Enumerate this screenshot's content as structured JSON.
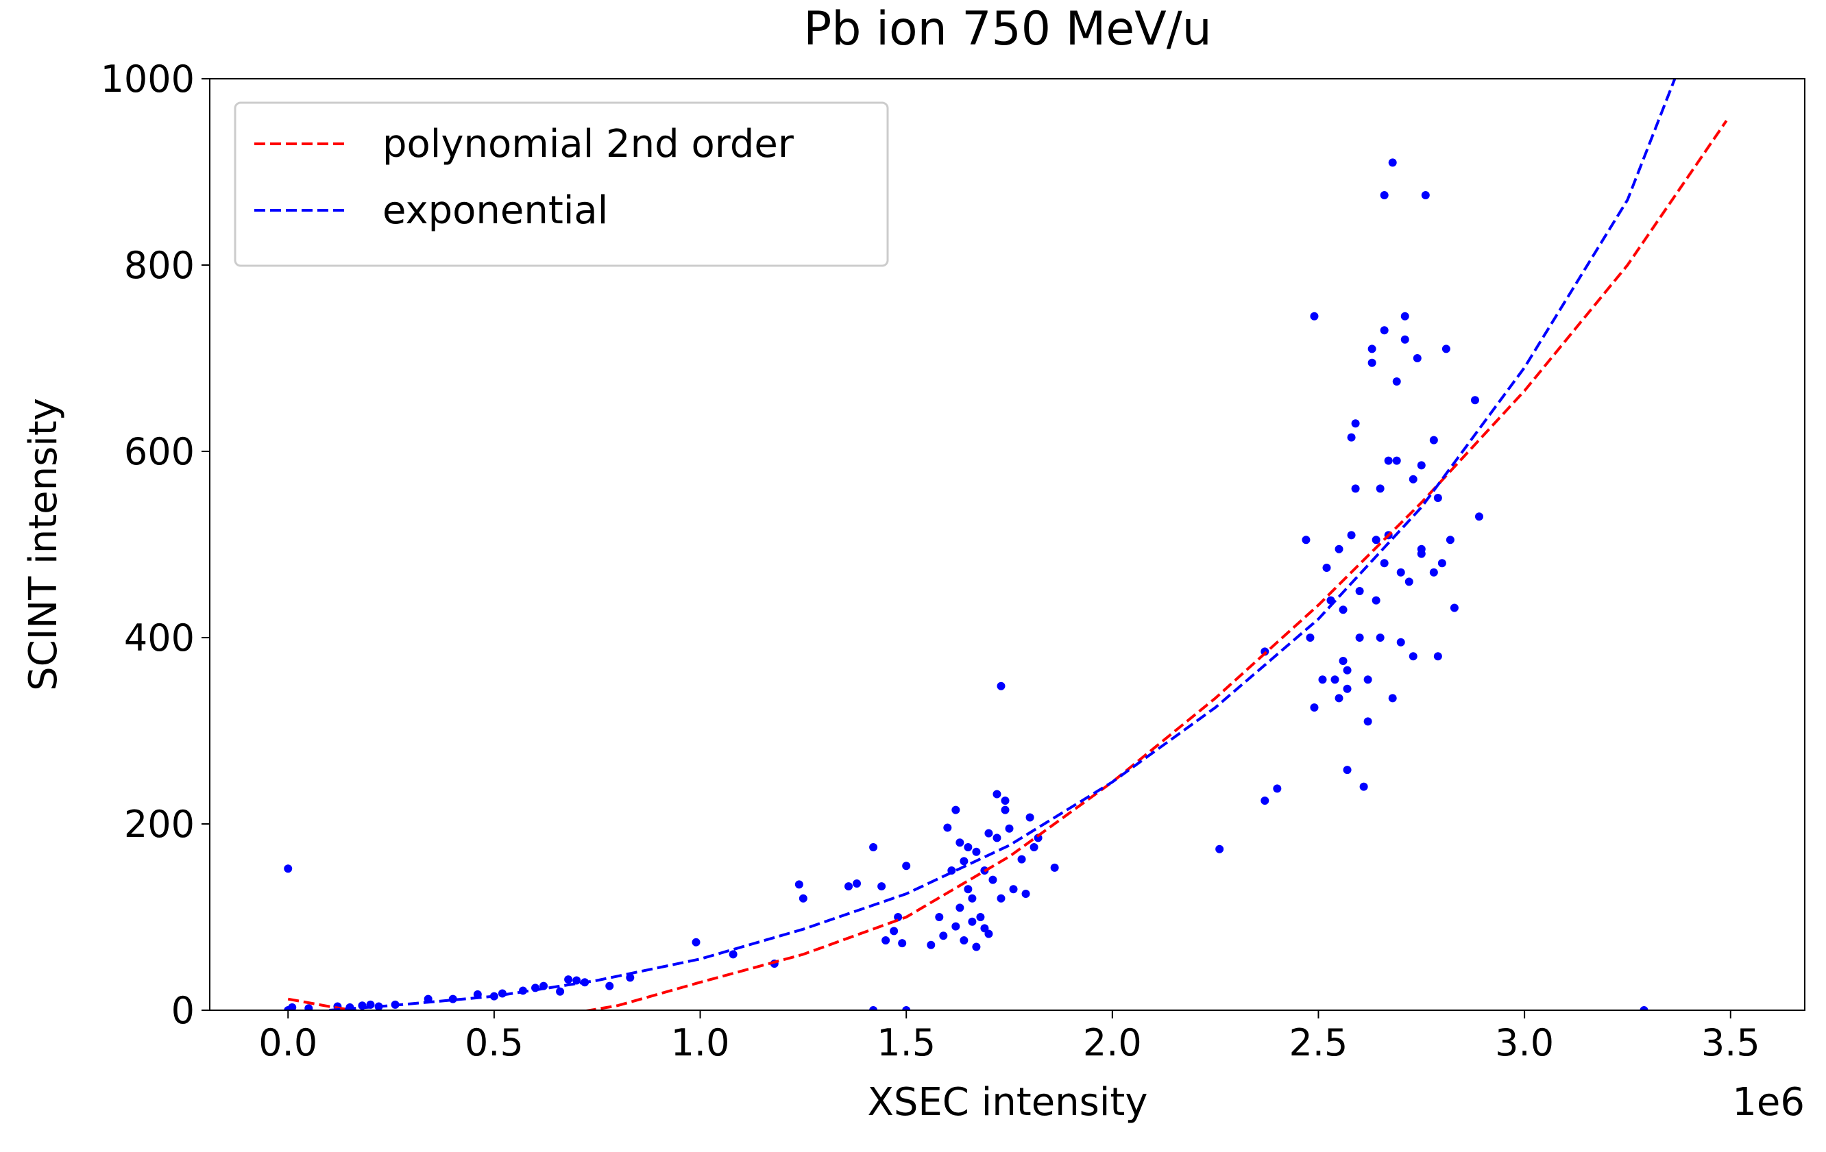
{
  "chart_data": {
    "type": "scatter",
    "title": "Pb ion 750 MeV/u",
    "x_label": "XSEC intensity",
    "y_label": "SCINT intensity",
    "x_offset_label": "1e6",
    "xlim": [
      -190000,
      3680000
    ],
    "ylim": [
      0,
      1000
    ],
    "xticks": [
      {
        "value": 0,
        "label": "0.0"
      },
      {
        "value": 500000,
        "label": "0.5"
      },
      {
        "value": 1000000,
        "label": "1.0"
      },
      {
        "value": 1500000,
        "label": "1.5"
      },
      {
        "value": 2000000,
        "label": "2.0"
      },
      {
        "value": 2500000,
        "label": "2.5"
      },
      {
        "value": 3000000,
        "label": "3.0"
      },
      {
        "value": 3500000,
        "label": "3.5"
      }
    ],
    "yticks": [
      0,
      200,
      400,
      600,
      800,
      1000
    ],
    "grid": false,
    "legend": "upper left",
    "series": [
      {
        "style": "points",
        "color": "#0000ff",
        "x": [
          0,
          0,
          10000,
          50000,
          120000,
          150000,
          180000,
          200000,
          220000,
          260000,
          340000,
          400000,
          460000,
          500000,
          520000,
          570000,
          600000,
          620000,
          660000,
          680000,
          700000,
          720000,
          780000,
          830000,
          990000,
          1080000,
          1180000,
          1240000,
          1250000,
          1360000,
          1380000,
          1420000,
          1440000,
          1450000,
          1470000,
          1480000,
          1490000,
          1500000,
          1420000,
          1500000,
          1560000,
          1580000,
          1590000,
          1600000,
          1610000,
          1620000,
          1620000,
          1630000,
          1630000,
          1640000,
          1640000,
          1650000,
          1650000,
          1660000,
          1660000,
          1670000,
          1670000,
          1680000,
          1690000,
          1690000,
          1700000,
          1700000,
          1710000,
          1720000,
          1720000,
          1730000,
          1730000,
          1740000,
          1740000,
          1750000,
          1760000,
          1780000,
          1790000,
          1800000,
          1810000,
          1820000,
          1860000,
          2260000,
          2370000,
          2370000,
          2400000,
          2470000,
          2480000,
          2490000,
          2490000,
          2510000,
          2520000,
          2530000,
          2540000,
          2550000,
          2550000,
          2560000,
          2560000,
          2570000,
          2570000,
          2570000,
          2580000,
          2580000,
          2590000,
          2590000,
          2600000,
          2600000,
          2610000,
          2620000,
          2620000,
          2630000,
          2630000,
          2640000,
          2640000,
          2650000,
          2650000,
          2660000,
          2660000,
          2660000,
          2670000,
          2670000,
          2680000,
          2680000,
          2690000,
          2690000,
          2700000,
          2700000,
          2710000,
          2710000,
          2720000,
          2730000,
          2730000,
          2740000,
          2750000,
          2750000,
          2750000,
          2760000,
          2780000,
          2790000,
          2790000,
          2800000,
          2810000,
          2820000,
          2830000,
          2880000,
          2890000,
          3290000,
          2780000
        ],
        "values": [
          152,
          0,
          3,
          2,
          4,
          3,
          5,
          6,
          4,
          6,
          12,
          12,
          17,
          15,
          18,
          21,
          24,
          26,
          20,
          33,
          32,
          30,
          26,
          35,
          73,
          60,
          50,
          135,
          120,
          133,
          136,
          175,
          133,
          75,
          85,
          100,
          72,
          155,
          0,
          0,
          70,
          100,
          80,
          196,
          150,
          215,
          90,
          180,
          110,
          160,
          75,
          175,
          130,
          120,
          95,
          170,
          68,
          100,
          150,
          88,
          190,
          82,
          140,
          232,
          185,
          348,
          120,
          215,
          225,
          195,
          130,
          162,
          125,
          207,
          175,
          185,
          153,
          173,
          385,
          225,
          238,
          505,
          400,
          745,
          325,
          355,
          475,
          440,
          355,
          335,
          495,
          375,
          430,
          345,
          365,
          258,
          510,
          615,
          630,
          560,
          400,
          450,
          240,
          310,
          355,
          695,
          710,
          505,
          440,
          400,
          560,
          730,
          480,
          875,
          590,
          510,
          910,
          335,
          590,
          675,
          395,
          470,
          720,
          745,
          460,
          380,
          570,
          700,
          495,
          490,
          585,
          875,
          470,
          550,
          380,
          480,
          710,
          505,
          432,
          655,
          530,
          0,
          612
        ]
      },
      {
        "style": "dashed-line",
        "name": "polynomial 2nd order",
        "color": "#ff0000",
        "x": [
          0,
          100000,
          200000,
          400000,
          600000,
          800000,
          1000000,
          1250000,
          1500000,
          1750000,
          2000000,
          2250000,
          2500000,
          2750000,
          3000000,
          3250000,
          3490000
        ],
        "values": [
          12,
          4,
          -3,
          -12,
          -10,
          5,
          30,
          60,
          100,
          165,
          245,
          335,
          435,
          545,
          665,
          800,
          955
        ]
      },
      {
        "style": "dashed-line",
        "name": "exponential",
        "color": "#0000ff",
        "x": [
          100000,
          250000,
          500000,
          750000,
          1000000,
          1250000,
          1500000,
          1750000,
          2000000,
          2250000,
          2500000,
          2750000,
          3000000,
          3250000,
          3400000
        ],
        "values": [
          0,
          5,
          15,
          32,
          55,
          87,
          125,
          177,
          245,
          325,
          420,
          540,
          690,
          870,
          1040
        ]
      }
    ]
  }
}
